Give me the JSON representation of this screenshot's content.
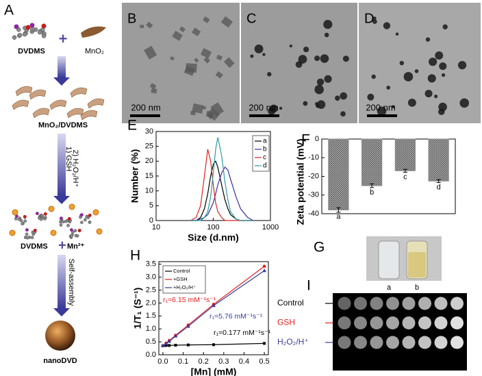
{
  "figure": {
    "panel_A": {
      "label": "A",
      "dvdms": "DVDMS",
      "plus": "+",
      "mno2": "MnO₂",
      "complex": "MnO₂/DVDMS",
      "step1": "1) GSH",
      "step2": "2) H₂O₂/H⁺",
      "product_1": "DVDMS",
      "product_plus": "+",
      "product_2": "Mn²⁺",
      "assembly": "Self-assembly",
      "final": "nanoDVD"
    },
    "panel_B": {
      "label": "B",
      "scale": "200 nm"
    },
    "panel_C": {
      "label": "C",
      "scale": "200 nm"
    },
    "panel_D": {
      "label": "D",
      "scale": "200 nm"
    },
    "panel_G": {
      "label": "G",
      "samples": [
        "a",
        "b"
      ]
    },
    "panel_I": {
      "label": "I",
      "rows": [
        "Control",
        "GSH",
        "H₂O₂/H⁺"
      ],
      "row_colors": [
        "#000000",
        "#e02020",
        "#3a3a9a"
      ]
    }
  },
  "chart_data": [
    {
      "type": "line",
      "panel": "E",
      "x_label": "Size (d.nm)",
      "y_label": "Number (%)",
      "xscale": "log",
      "xlim": [
        10,
        1000
      ],
      "xticks": [
        10,
        100,
        1000
      ],
      "ylim": [
        0,
        30
      ],
      "yticks": [
        0,
        5,
        10,
        15,
        20,
        25,
        30
      ],
      "legend": "upper right",
      "x": [
        40,
        50,
        60,
        70,
        80,
        90,
        100,
        110,
        120,
        140,
        160,
        180,
        200,
        250,
        300,
        400,
        500
      ],
      "series": [
        {
          "name": "a",
          "color": "#000000",
          "values": [
            0,
            0,
            1,
            4,
            9,
            15,
            19,
            20,
            18,
            12,
            7,
            4,
            2,
            0.5,
            0,
            0,
            0
          ]
        },
        {
          "name": "b",
          "color": "#3030a0",
          "values": [
            0,
            0,
            0.5,
            1,
            2,
            4,
            6,
            9,
            12,
            16,
            18,
            17,
            14,
            8,
            4,
            1,
            0
          ]
        },
        {
          "name": "c",
          "color": "#e02020",
          "values": [
            0,
            1,
            5,
            15,
            24,
            20,
            12,
            6,
            3,
            1,
            0,
            0,
            0,
            0,
            0,
            0,
            0
          ]
        },
        {
          "name": "d",
          "color": "#2a9d9d",
          "values": [
            0,
            0,
            0,
            1,
            3,
            8,
            16,
            24,
            28,
            22,
            13,
            7,
            3,
            0.5,
            0,
            0,
            0
          ]
        }
      ]
    },
    {
      "type": "bar",
      "panel": "F",
      "y_label": "Zeta potential (mV)",
      "categories": [
        "a",
        "b",
        "c",
        "d"
      ],
      "values": [
        -38,
        -25,
        -17,
        -22.5
      ],
      "errors": [
        1.2,
        1,
        0.8,
        0.8
      ],
      "color": "#8a8a8a",
      "ylim": [
        -40,
        0
      ],
      "yticks": [
        0,
        -10,
        -20,
        -30,
        -40
      ]
    },
    {
      "type": "line",
      "panel": "H",
      "x_label": "[Mn] (mM)",
      "y_label": "1/T₁ (S⁻¹)",
      "markers": true,
      "legend": "upper left",
      "xlim": [
        -0.02,
        0.52
      ],
      "xticks": [
        {
          "value": 0,
          "label": "0.0"
        },
        0.1,
        0.2,
        0.3,
        0.4,
        0.5
      ],
      "ylim": [
        0,
        3.6
      ],
      "yticks": [
        {
          "value": 0,
          "label": "0.0"
        },
        0.5,
        {
          "value": 1,
          "label": "1.0"
        },
        1.5,
        {
          "value": 2,
          "label": "2.0"
        },
        2.5,
        {
          "value": 3,
          "label": "3.0"
        },
        3.5
      ],
      "x": [
        0,
        0.0156,
        0.03125,
        0.0625,
        0.125,
        0.25,
        0.5
      ],
      "series": [
        {
          "name": "Control",
          "color": "#000000",
          "values": [
            0.35,
            0.36,
            0.36,
            0.37,
            0.38,
            0.39,
            0.44
          ]
        },
        {
          "name": "+GSH",
          "color": "#e02020",
          "values": [
            0.35,
            0.45,
            0.55,
            0.75,
            1.15,
            1.95,
            3.42
          ]
        },
        {
          "name": "+H₂O₂/H⁺",
          "color": "#3a3a9a",
          "values": [
            0.35,
            0.43,
            0.52,
            0.72,
            1.1,
            1.9,
            3.25
          ]
        }
      ],
      "annotations": [
        {
          "text": "r₁=6.15 mM⁻¹s⁻¹",
          "color": "#e02020"
        },
        {
          "text": "r₁=5.76 mM⁻¹s⁻¹",
          "color": "#3a3a9a"
        },
        {
          "text": "r₁=0.177 mM⁻¹s⁻¹",
          "color": "#000000"
        }
      ]
    }
  ]
}
